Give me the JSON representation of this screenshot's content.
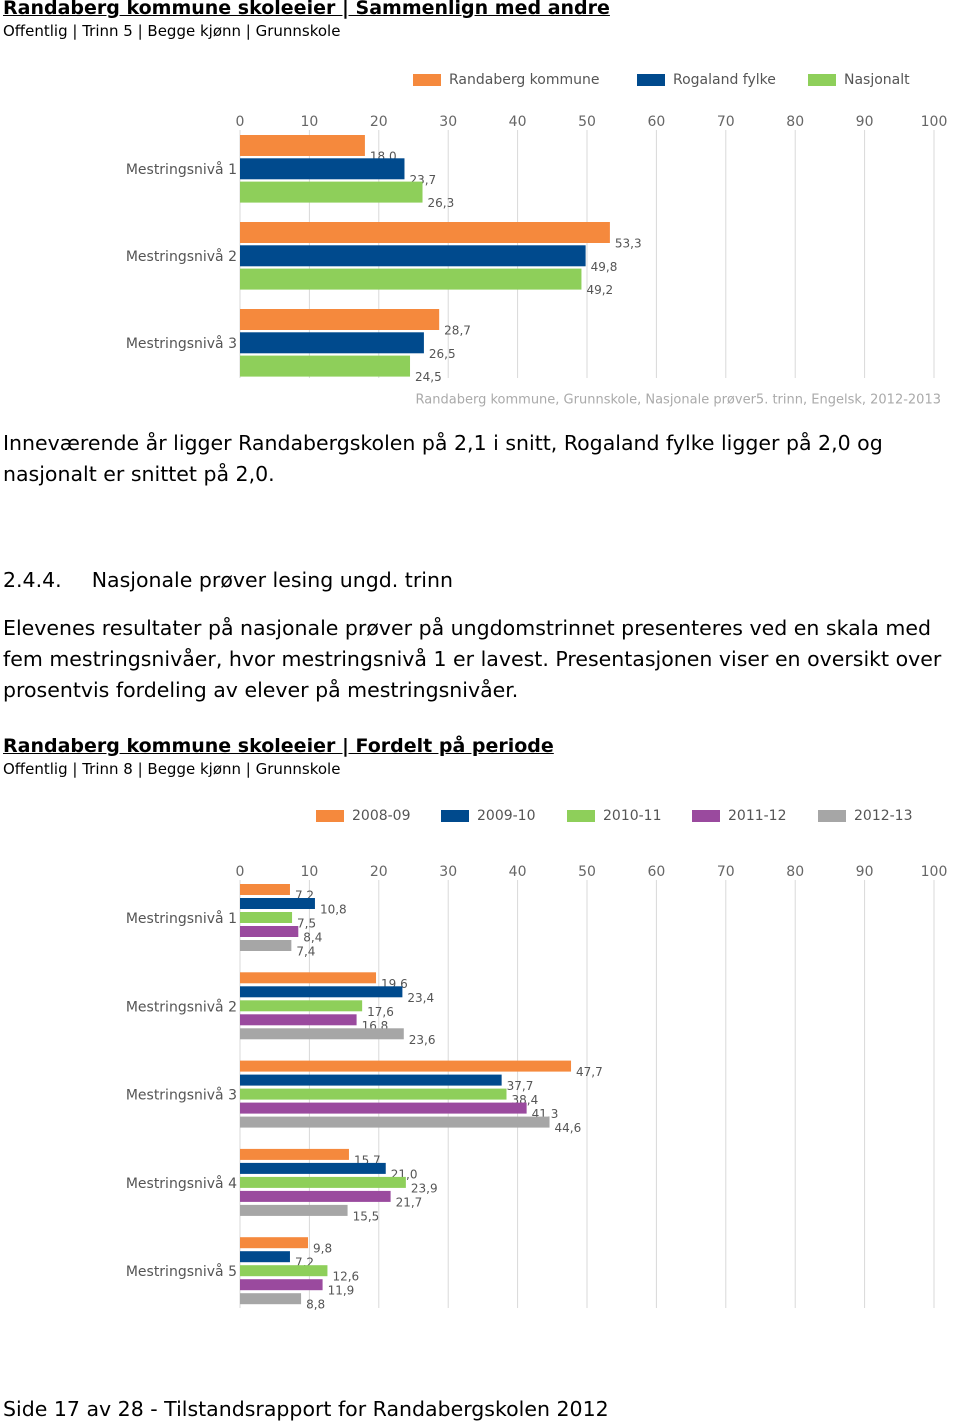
{
  "chart_data": [
    {
      "type": "bar",
      "orientation": "horizontal",
      "title": "Randaberg kommune skoleeier | Sammenlign med andre",
      "subtitle": "Offentlig | Trinn 5 | Begge kjønn | Grunnskole",
      "categories": [
        "Mestringsnivå 1",
        "Mestringsnivå 2",
        "Mestringsnivå 3"
      ],
      "series": [
        {
          "name": "Randaberg kommune",
          "color": "#f5893d",
          "values": [
            18.0,
            53.3,
            28.7
          ],
          "value_labels": [
            "18,0",
            "53,3",
            "28,7"
          ]
        },
        {
          "name": "Rogaland fylke",
          "color": "#004a8d",
          "values": [
            23.7,
            49.8,
            26.5
          ],
          "value_labels": [
            "23,7",
            "49,8",
            "26,5"
          ]
        },
        {
          "name": "Nasjonalt",
          "color": "#8ecf5a",
          "values": [
            26.3,
            49.2,
            24.5
          ],
          "value_labels": [
            "26,3",
            "49,2",
            "24,5"
          ]
        }
      ],
      "xlim": [
        0,
        100
      ],
      "xticks": [
        0,
        10,
        20,
        30,
        40,
        50,
        60,
        70,
        80,
        90,
        100
      ],
      "grid": true,
      "legend": "top",
      "source": "Randaberg kommune, Grunnskole, Nasjonale prøver5. trinn, Engelsk, 2012-2013"
    },
    {
      "type": "bar",
      "orientation": "horizontal",
      "title": "Randaberg kommune skoleeier | Fordelt på periode",
      "subtitle": "Offentlig | Trinn 8 | Begge kjønn | Grunnskole",
      "categories": [
        "Mestringsnivå 1",
        "Mestringsnivå 2",
        "Mestringsnivå 3",
        "Mestringsnivå 4",
        "Mestringsnivå 5"
      ],
      "series": [
        {
          "name": "2008-09",
          "color": "#f5893d",
          "values": [
            7.2,
            19.6,
            47.7,
            15.7,
            9.8
          ],
          "value_labels": [
            "7,2",
            "19,6",
            "47,7",
            "15,7",
            "9,8"
          ]
        },
        {
          "name": "2009-10",
          "color": "#004a8d",
          "values": [
            10.8,
            23.4,
            37.7,
            21.0,
            7.2
          ],
          "value_labels": [
            "10,8",
            "23,4",
            "37,7",
            "21,0",
            "7,2"
          ]
        },
        {
          "name": "2010-11",
          "color": "#8ecf5a",
          "values": [
            7.5,
            17.6,
            38.4,
            23.9,
            12.6
          ],
          "value_labels": [
            "7,5",
            "17,6",
            "38,4",
            "23,9",
            "12,6"
          ]
        },
        {
          "name": "2011-12",
          "color": "#9a4a9e",
          "values": [
            8.4,
            16.8,
            41.3,
            21.7,
            11.9
          ],
          "value_labels": [
            "8,4",
            "16,8",
            "41,3",
            "21,7",
            "11,9"
          ]
        },
        {
          "name": "2012-13",
          "color": "#a6a6a6",
          "values": [
            7.4,
            23.6,
            44.6,
            15.5,
            8.8
          ],
          "value_labels": [
            "7,4",
            "23,6",
            "44,6",
            "15,5",
            "8,8"
          ]
        }
      ],
      "xlim": [
        0,
        100
      ],
      "xticks": [
        0,
        10,
        20,
        30,
        40,
        50,
        60,
        70,
        80,
        90,
        100
      ],
      "grid": true,
      "legend": "top"
    }
  ],
  "paragraph1": "Inneværende år ligger Randabergskolen på 2,1 i snitt, Rogaland fylke ligger på 2,0 og nasjonalt er snittet på 2,0.",
  "section": {
    "number": "2.4.4.",
    "title": "Nasjonale prøver lesing ungd. trinn"
  },
  "paragraph2": "Elevenes resultater på nasjonale prøver på ungdomstrinnet presenteres ved en skala med fem mestringsnivåer, hvor mestringsnivå 1 er lavest. Presentasjonen viser en oversikt over prosentvis fordeling av elever på mestringsnivåer.",
  "footer": "Side 17 av 28 - Tilstandsrapport for Randabergskolen 2012"
}
